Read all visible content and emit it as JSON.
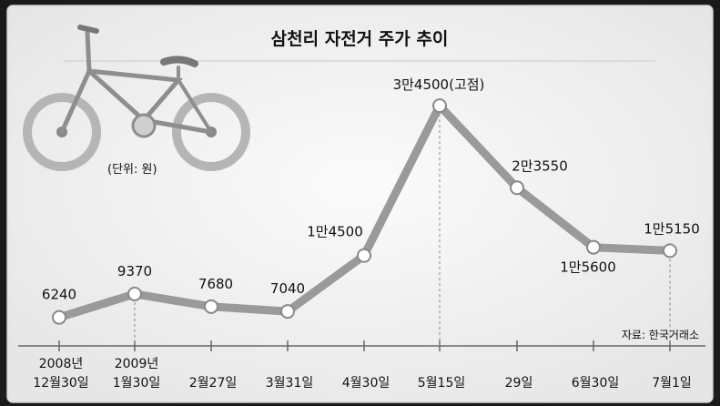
{
  "chart_data": {
    "type": "line",
    "title": "삼천리 자전거 주가 추이",
    "unit_note": "(단위: 원)",
    "source": "자료: 한국거래소",
    "categories": [
      [
        "2008년",
        "12월30일"
      ],
      [
        "2009년",
        "1월30일"
      ],
      [
        "",
        "2월27일"
      ],
      [
        "",
        "3월31일"
      ],
      [
        "",
        "4월30일"
      ],
      [
        "",
        "5월15일"
      ],
      [
        "",
        "29일"
      ],
      [
        "",
        "6월30일"
      ],
      [
        "",
        "7월1일"
      ]
    ],
    "values": [
      6240,
      9370,
      7680,
      7040,
      14500,
      34500,
      23550,
      15600,
      15150
    ],
    "data_labels": [
      "6240",
      "9370",
      "7680",
      "7040",
      "1만4500",
      "3만4500(고점)",
      "2만3550",
      "1만5600",
      "1만5150"
    ],
    "colors": {
      "line": "#9a9a9a",
      "marker_fill": "#ffffff",
      "marker_stroke": "#888888",
      "background": "#f4f4f4",
      "text": "#111111"
    }
  }
}
